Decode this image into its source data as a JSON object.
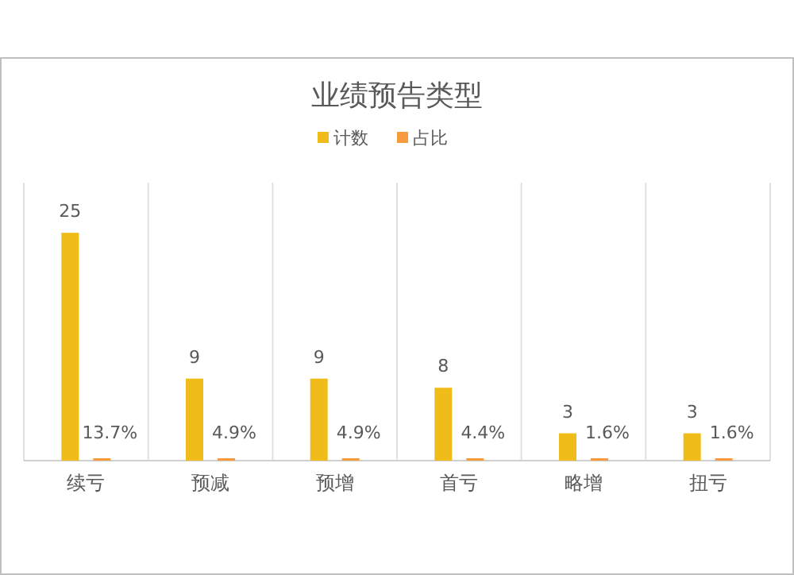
{
  "chart_data": {
    "type": "bar",
    "title": "业绩预告类型",
    "categories": [
      "续亏",
      "预减",
      "预增",
      "首亏",
      "略增",
      "扭亏"
    ],
    "series": [
      {
        "name": "计数",
        "color": "#f0bc1a",
        "values": [
          25,
          9,
          9,
          8,
          3,
          3
        ],
        "value_labels": [
          "25",
          "9",
          "9",
          "8",
          "3",
          "3"
        ]
      },
      {
        "name": "占比",
        "color": "#f79b3c",
        "values": [
          0.137,
          0.049,
          0.049,
          0.044,
          0.016,
          0.016
        ],
        "value_labels": [
          "13.7%",
          "4.9%",
          "4.9%",
          "4.4%",
          "1.6%",
          "1.6%"
        ]
      }
    ],
    "grid": "x",
    "legend": "top"
  }
}
